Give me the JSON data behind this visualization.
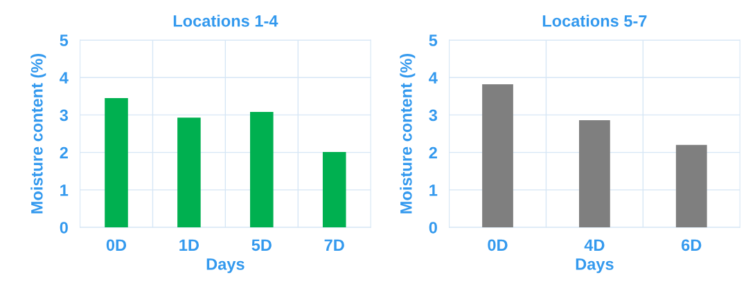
{
  "chart_data": [
    {
      "type": "bar",
      "title": "Locations 1-4",
      "xlabel": "Days",
      "ylabel": "Moisture content (%)",
      "categories": [
        "0D",
        "1D",
        "5D",
        "7D"
      ],
      "series": [
        {
          "color": "#00b050",
          "values": [
            3.45,
            2.93,
            3.08,
            2.01
          ]
        }
      ],
      "ylim": [
        0,
        5
      ],
      "yticks": [
        0,
        1,
        2,
        3,
        4,
        5
      ],
      "grid": true,
      "legend": false
    },
    {
      "type": "bar",
      "title": "Locations 5-7",
      "xlabel": "Days",
      "ylabel": "Moisture content (%)",
      "categories": [
        "0D",
        "4D",
        "6D"
      ],
      "series": [
        {
          "color": "#7f7f7f",
          "values": [
            3.82,
            2.86,
            2.2
          ]
        }
      ],
      "ylim": [
        0,
        5
      ],
      "yticks": [
        0,
        1,
        2,
        3,
        4,
        5
      ],
      "grid": true,
      "legend": false
    }
  ]
}
